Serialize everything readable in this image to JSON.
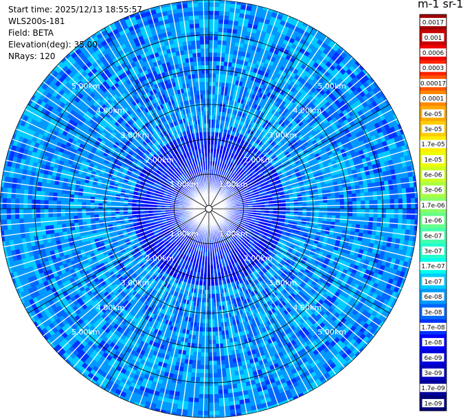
{
  "info": {
    "start_time": "Start time: 2025/12/13 18:55:57",
    "instrument": "WLS200s-181",
    "field": "Field: BETA",
    "elevation": "Elevation(deg): 35.00",
    "nrays": "NRays: 120"
  },
  "colorbar": {
    "title": "m-1 sr-1",
    "labels": [
      "0.0017",
      "0.001",
      "0.0006",
      "0.0003",
      "0.00017",
      "0.0001",
      "6e-05",
      "3e-05",
      "1.7e-05",
      "1e-05",
      "6e-06",
      "3e-06",
      "1.7e-06",
      "1e-06",
      "6e-07",
      "3e-07",
      "1.7e-07",
      "1e-07",
      "6e-08",
      "3e-08",
      "1.7e-08",
      "1e-08",
      "6e-09",
      "3e-09",
      "1.7e-09",
      "1e-09"
    ],
    "colors": [
      "#a00000",
      "#c80000",
      "#ee0000",
      "#ff2200",
      "#ff5500",
      "#ff8800",
      "#ffaa00",
      "#ffcc00",
      "#ffee00",
      "#eeff00",
      "#ccff22",
      "#aaff44",
      "#88ff66",
      "#66ff88",
      "#44ffaa",
      "#22ffcc",
      "#00ffee",
      "#00ccff",
      "#0099ff",
      "#0066ff",
      "#0033ff",
      "#0000ff",
      "#0000dd",
      "#0000bb",
      "#000099",
      "#000077"
    ]
  },
  "chart_data": {
    "type": "ppi",
    "field": "BETA",
    "elevation_deg": 35.0,
    "nrays": 120,
    "range_rings_km": [
      1,
      2,
      3,
      4,
      5
    ],
    "range_labels": [
      "1.00km",
      "2.00km",
      "3.00km",
      "4.00km",
      "5.00km"
    ],
    "max_range_km": 6.0,
    "colorbar_labels": [
      "0.0017",
      "0.001",
      "0.0006",
      "0.0003",
      "0.00017",
      "0.0001",
      "6e-05",
      "3e-05",
      "1.7e-05",
      "1e-05",
      "6e-06",
      "3e-06",
      "1.7e-06",
      "1e-06",
      "6e-07",
      "3e-07",
      "1.7e-07",
      "1e-07",
      "6e-08",
      "3e-08",
      "1.7e-08",
      "1e-08",
      "6e-09",
      "3e-09",
      "1.7e-09",
      "1e-09"
    ],
    "typical_value_range": [
      "1e-08",
      "1e-07"
    ]
  }
}
